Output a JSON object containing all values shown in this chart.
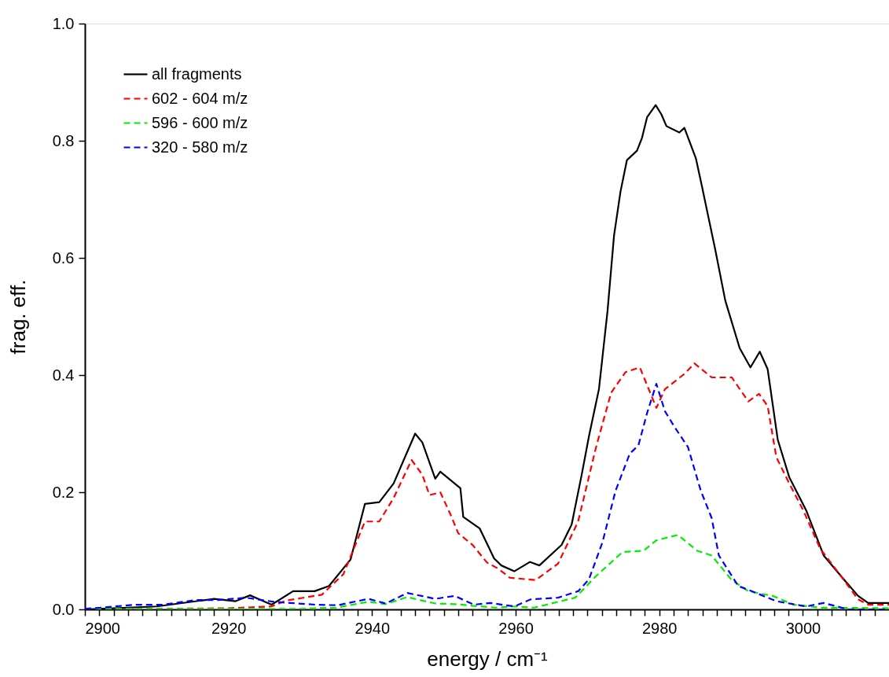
{
  "chart_data": {
    "type": "line",
    "xlabel": "energy / cm⁻¹",
    "ylabel": "frag. eff.",
    "xlim": [
      2900,
      3012
    ],
    "ylim": [
      0,
      1
    ],
    "xticks": [
      2900,
      {
        "value": 2902,
        "label": null
      },
      {
        "value": 2904,
        "label": null
      },
      {
        "value": 2906,
        "label": null
      },
      {
        "value": 2908,
        "label": null
      },
      {
        "value": 2910,
        "label": null
      },
      {
        "value": 2912,
        "label": null
      },
      {
        "value": 2914,
        "label": null
      },
      {
        "value": 2916,
        "label": null
      },
      {
        "value": 2918,
        "label": null
      },
      2920,
      {
        "value": 2922,
        "label": null
      },
      {
        "value": 2924,
        "label": null
      },
      {
        "value": 2926,
        "label": null
      },
      {
        "value": 2928,
        "label": null
      },
      {
        "value": 2930,
        "label": null
      },
      {
        "value": 2932,
        "label": null
      },
      {
        "value": 2934,
        "label": null
      },
      {
        "value": 2936,
        "label": null
      },
      {
        "value": 2938,
        "label": null
      },
      2940,
      {
        "value": 2942,
        "label": null
      },
      {
        "value": 2944,
        "label": null
      },
      {
        "value": 2946,
        "label": null
      },
      {
        "value": 2948,
        "label": null
      },
      {
        "value": 2950,
        "label": null
      },
      {
        "value": 2952,
        "label": null
      },
      {
        "value": 2954,
        "label": null
      },
      {
        "value": 2956,
        "label": null
      },
      {
        "value": 2958,
        "label": null
      },
      2960,
      {
        "value": 2962,
        "label": null
      },
      {
        "value": 2964,
        "label": null
      },
      {
        "value": 2966,
        "label": null
      },
      {
        "value": 2968,
        "label": null
      },
      {
        "value": 2970,
        "label": null
      },
      {
        "value": 2972,
        "label": null
      },
      {
        "value": 2974,
        "label": null
      },
      {
        "value": 2976,
        "label": null
      },
      {
        "value": 2978,
        "label": null
      },
      2980,
      {
        "value": 2982,
        "label": null
      },
      {
        "value": 2984,
        "label": null
      },
      {
        "value": 2986,
        "label": null
      },
      {
        "value": 2988,
        "label": null
      },
      {
        "value": 2990,
        "label": null
      },
      {
        "value": 2992,
        "label": null
      },
      {
        "value": 2994,
        "label": null
      },
      {
        "value": 2996,
        "label": null
      },
      {
        "value": 2998,
        "label": null
      },
      3000,
      {
        "value": 3002,
        "label": null
      },
      {
        "value": 3004,
        "label": null
      },
      {
        "value": 3006,
        "label": null
      },
      {
        "value": 3008,
        "label": null
      },
      {
        "value": 3010,
        "label": null
      }
    ],
    "yticks": [
      {
        "value": 0,
        "label": "0.0"
      },
      {
        "value": 0.2,
        "label": "0.2"
      },
      {
        "value": 0.4,
        "label": "0.4"
      },
      {
        "value": 0.6,
        "label": "0.6"
      },
      {
        "value": 0.8,
        "label": "0.8"
      },
      {
        "value": 1,
        "label": "1.0"
      }
    ],
    "grid": false,
    "legend": "top left",
    "series": [
      {
        "name": "all fragments",
        "color": "#000000",
        "line_style": "solid",
        "x": [
          2900,
          2910,
          2918,
          2921,
          2923,
          2926,
          2929,
          2932,
          2934,
          2937,
          2939,
          2941,
          2943,
          2946,
          2947,
          2948.8,
          2949.5,
          2952.3,
          2952.7,
          2955,
          2957,
          2958,
          2959.8,
          2962,
          2963.3,
          2966.4,
          2967.8,
          2969.2,
          2970.2,
          2971.6,
          2972.8,
          2973.7,
          2974.6,
          2975.5,
          2976.9,
          2977.6,
          2978.3,
          2979.5,
          2980.3,
          2981,
          2982.8,
          2983.5,
          2985.1,
          2986,
          2987.8,
          2989.2,
          2991.2,
          2992.7,
          2994,
          2995.1,
          2996.5,
          2998.1,
          3000.5,
          3002.9,
          3005.3,
          3007.7,
          3009.1,
          3012
        ],
        "values": [
          0.0,
          0.005,
          0.018,
          0.014,
          0.024,
          0.008,
          0.031,
          0.031,
          0.04,
          0.085,
          0.18,
          0.183,
          0.215,
          0.3,
          0.285,
          0.223,
          0.235,
          0.207,
          0.158,
          0.138,
          0.087,
          0.075,
          0.065,
          0.081,
          0.075,
          0.11,
          0.145,
          0.23,
          0.295,
          0.376,
          0.51,
          0.638,
          0.713,
          0.767,
          0.783,
          0.805,
          0.84,
          0.861,
          0.845,
          0.825,
          0.814,
          0.822,
          0.77,
          0.719,
          0.614,
          0.527,
          0.446,
          0.413,
          0.44,
          0.41,
          0.29,
          0.226,
          0.168,
          0.092,
          0.057,
          0.023,
          0.011,
          0.011
        ]
      },
      {
        "name": "602 - 604 m/z",
        "color": "#ff0000",
        "line_style": "dashed",
        "x": [
          2900,
          2920,
          2926,
          2928,
          2933,
          2936,
          2939,
          2941,
          2943,
          2945.5,
          2947,
          2948,
          2949.5,
          2951,
          2952,
          2954,
          2956,
          2957.5,
          2959.2,
          2962.8,
          2965.9,
          2968.7,
          2971.2,
          2973.3,
          2975.3,
          2977.3,
          2979.6,
          2980.8,
          2983.5,
          2984.9,
          2987.3,
          2990.1,
          2992.4,
          2993.9,
          2995.1,
          2996.3,
          2997.9,
          3000.1,
          3002.4,
          3005.3,
          3007.7,
          3009.1,
          3012
        ],
        "values": [
          0.0,
          0.002,
          0.005,
          0.015,
          0.025,
          0.06,
          0.15,
          0.15,
          0.19,
          0.255,
          0.23,
          0.195,
          0.2,
          0.16,
          0.13,
          0.11,
          0.08,
          0.07,
          0.054,
          0.05,
          0.078,
          0.15,
          0.277,
          0.37,
          0.405,
          0.413,
          0.344,
          0.376,
          0.402,
          0.42,
          0.396,
          0.396,
          0.355,
          0.368,
          0.347,
          0.26,
          0.22,
          0.168,
          0.104,
          0.057,
          0.017,
          0.008,
          0.008
        ]
      },
      {
        "name": "596 - 600 m/z",
        "color": "#00ee00",
        "line_style": "dashed",
        "x": [
          2900,
          2930,
          2935,
          2939.5,
          2941.9,
          2944.9,
          2948.8,
          2951.5,
          2954.2,
          2957.3,
          2959.8,
          2962.6,
          2968.3,
          2971.2,
          2974.9,
          2977.8,
          2979.6,
          2982.6,
          2985.3,
          2987.3,
          2990.1,
          2992.4,
          2995.8,
          2998.7,
          3002.4,
          3012
        ],
        "values": [
          0.001,
          0.001,
          0.003,
          0.013,
          0.009,
          0.021,
          0.01,
          0.009,
          0.006,
          0.003,
          0.005,
          0.003,
          0.02,
          0.057,
          0.098,
          0.1,
          0.118,
          0.127,
          0.1,
          0.092,
          0.05,
          0.031,
          0.023,
          0.008,
          0.003,
          0.002
        ]
      },
      {
        "name": "320 - 580 m/z",
        "color": "#0000ff",
        "line_style": "dashed",
        "x": [
          2900,
          2902.3,
          2907,
          2910.8,
          2915.5,
          2918.6,
          2922.4,
          2926.3,
          2928.6,
          2932.1,
          2935.2,
          2939.5,
          2941.9,
          2944.9,
          2948.8,
          2951.5,
          2954.2,
          2956.5,
          2959.8,
          2962.1,
          2965.9,
          2968.7,
          2970.2,
          2972.1,
          2973.9,
          2975.9,
          2977.1,
          2978.3,
          2979.6,
          2980.8,
          2982.1,
          2984,
          2985.8,
          2987.3,
          2988.3,
          2991,
          2993.5,
          2996.3,
          3000.5,
          3002.9,
          3006.3,
          3012
        ],
        "values": [
          0.001,
          0.003,
          0.008,
          0.008,
          0.016,
          0.016,
          0.02,
          0.013,
          0.011,
          0.008,
          0.007,
          0.018,
          0.01,
          0.028,
          0.018,
          0.023,
          0.008,
          0.011,
          0.005,
          0.017,
          0.02,
          0.031,
          0.051,
          0.115,
          0.202,
          0.266,
          0.28,
          0.335,
          0.385,
          0.338,
          0.312,
          0.277,
          0.202,
          0.156,
          0.092,
          0.04,
          0.028,
          0.014,
          0.005,
          0.011,
          0.0,
          0.0
        ]
      }
    ]
  }
}
